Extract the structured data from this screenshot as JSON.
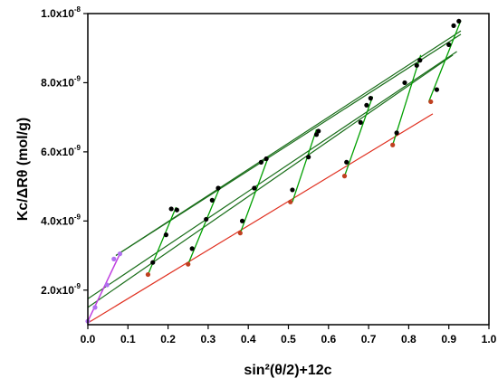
{
  "chart_data": {
    "type": "scatter",
    "title": "",
    "xlabel": "sin²(θ/2)+12c",
    "ylabel": "Kc/ΔRθ   (mol/g)",
    "xlim": [
      0,
      1.0
    ],
    "ylim": [
      1e-09,
      1e-08
    ],
    "x_ticks": [
      {
        "value": 0.0,
        "label": "0.0"
      },
      {
        "value": 0.1,
        "label": "0.1"
      },
      {
        "value": 0.2,
        "label": "0.2"
      },
      {
        "value": 0.3,
        "label": "0.3"
      },
      {
        "value": 0.4,
        "label": "0.4"
      },
      {
        "value": 0.5,
        "label": "0.5"
      },
      {
        "value": 0.6,
        "label": "0.6"
      },
      {
        "value": 0.7,
        "label": "0.7"
      },
      {
        "value": 0.8,
        "label": "0.8"
      },
      {
        "value": 0.9,
        "label": "0.9"
      },
      {
        "value": 1.0,
        "label": "1.0"
      }
    ],
    "y_ticks": [
      {
        "value": 2e-09,
        "mantissa": "2.0x10",
        "exp": "-9"
      },
      {
        "value": 4e-09,
        "mantissa": "4.0x10",
        "exp": "-9"
      },
      {
        "value": 6e-09,
        "mantissa": "6.0x10",
        "exp": "-9"
      },
      {
        "value": 8e-09,
        "mantissa": "8.0x10",
        "exp": "-9"
      },
      {
        "value": 1e-08,
        "mantissa": "1.0x10",
        "exp": "-8"
      }
    ],
    "grid": false,
    "legend": "none",
    "colors": {
      "axis": "#000000",
      "angle_lines": "#00a000",
      "fit_lines": "#1a6e1a",
      "zero_conc_line": "#e03020",
      "zero_angle_line": "#c040e0",
      "data_points": "#000000",
      "extrapolated_points": "#c04020",
      "zero_angle_points": "#b070f0"
    },
    "concentration_lines": [
      {
        "x": [
          0.07,
          0.93
        ],
        "y": [
          3e-09,
          9.5e-09
        ]
      },
      {
        "x": [
          0.07,
          0.93
        ],
        "y": [
          3e-09,
          9.4e-09
        ]
      },
      {
        "x": [
          0.0,
          0.92
        ],
        "y": [
          1.75e-09,
          8.9e-09
        ]
      },
      {
        "x": [
          0.0,
          0.91
        ],
        "y": [
          1.5e-09,
          8.8e-09
        ]
      }
    ],
    "zero_concentration_line": {
      "x": [
        0.0,
        0.86
      ],
      "y": [
        1.05e-09,
        7.1e-09
      ]
    },
    "zero_angle_line": {
      "x": [
        0.0,
        0.08
      ],
      "y": [
        1.1e-09,
        3.05e-09
      ]
    },
    "angle_lines": [
      {
        "x": [
          0.15,
          0.22
        ],
        "y": [
          2.45e-09,
          4.4e-09
        ]
      },
      {
        "x": [
          0.25,
          0.33
        ],
        "y": [
          2.75e-09,
          5e-09
        ]
      },
      {
        "x": [
          0.38,
          0.45
        ],
        "y": [
          3.65e-09,
          5.85e-09
        ]
      },
      {
        "x": [
          0.51,
          0.57
        ],
        "y": [
          4.55e-09,
          6.65e-09
        ]
      },
      {
        "x": [
          0.64,
          0.71
        ],
        "y": [
          5.3e-09,
          7.6e-09
        ]
      },
      {
        "x": [
          0.76,
          0.83
        ],
        "y": [
          6.2e-09,
          8.8e-09
        ]
      },
      {
        "x": [
          0.85,
          0.93
        ],
        "y": [
          7.45e-09,
          9.8e-09
        ]
      }
    ],
    "series": [
      {
        "marker": "black-dot",
        "points": [
          [
            0.162,
            2.8e-09
          ],
          [
            0.195,
            3.6e-09
          ],
          [
            0.208,
            4.35e-09
          ],
          [
            0.222,
            4.32e-09
          ],
          [
            0.26,
            3.2e-09
          ],
          [
            0.295,
            4.05e-09
          ],
          [
            0.31,
            4.6e-09
          ],
          [
            0.325,
            4.95e-09
          ],
          [
            0.385,
            4e-09
          ],
          [
            0.415,
            4.95e-09
          ],
          [
            0.432,
            5.7e-09
          ],
          [
            0.445,
            5.8e-09
          ],
          [
            0.51,
            4.9e-09
          ],
          [
            0.55,
            5.85e-09
          ],
          [
            0.57,
            6.5e-09
          ],
          [
            0.575,
            6.6e-09
          ],
          [
            0.645,
            5.7e-09
          ],
          [
            0.68,
            6.85e-09
          ],
          [
            0.695,
            7.35e-09
          ],
          [
            0.705,
            7.55e-09
          ],
          [
            0.77,
            6.55e-09
          ],
          [
            0.79,
            8e-09
          ],
          [
            0.82,
            8.5e-09
          ],
          [
            0.828,
            8.65e-09
          ],
          [
            0.87,
            7.8e-09
          ],
          [
            0.9,
            9.1e-09
          ],
          [
            0.912,
            9.65e-09
          ],
          [
            0.925,
            9.78e-09
          ]
        ]
      },
      {
        "marker": "red-dot",
        "points": [
          [
            0.15,
            2.45e-09
          ],
          [
            0.25,
            2.75e-09
          ],
          [
            0.38,
            3.65e-09
          ],
          [
            0.505,
            4.55e-09
          ],
          [
            0.64,
            5.3e-09
          ],
          [
            0.76,
            6.2e-09
          ],
          [
            0.855,
            7.45e-09
          ]
        ]
      },
      {
        "marker": "purple-dot",
        "points": [
          [
            0.0,
            1.1e-09
          ],
          [
            0.018,
            1.5e-09
          ],
          [
            0.048,
            2.15e-09
          ],
          [
            0.065,
            2.9e-09
          ],
          [
            0.08,
            3.05e-09
          ]
        ]
      }
    ]
  }
}
